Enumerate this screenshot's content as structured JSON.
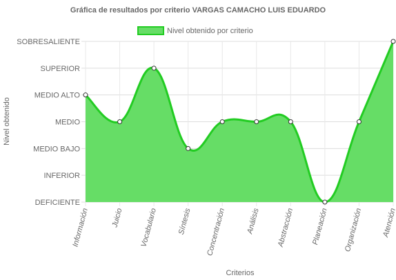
{
  "chart_data": {
    "type": "area",
    "title": "Gráfica de resultados por criterio VARGAS CAMACHO LUIS EDUARDO",
    "xlabel": "Criterios",
    "ylabel": "Nivel obtenido",
    "categories": [
      "Información",
      "Juicio",
      "Vocabulario",
      "Síntesis",
      "Concentración",
      "Análisis",
      "Abstracción",
      "Planeación",
      "Organización",
      "Atención"
    ],
    "y_levels": [
      "DEFICIENTE",
      "INFERIOR",
      "MEDIO BAJO",
      "MEDIO",
      "MEDIO ALTO",
      "SUPERIOR",
      "SOBRESALIENTE"
    ],
    "ylim": [
      0,
      6
    ],
    "series": [
      {
        "name": "Nivel obtenido por criterio",
        "values": [
          4,
          3,
          5,
          2,
          3,
          3,
          3,
          0,
          3,
          6
        ]
      }
    ],
    "legend": "top-center",
    "grid": true,
    "colors": {
      "fill": "#66dd66",
      "stroke": "#22cc22",
      "point_fill": "#ffffff",
      "point_stroke": "#333333"
    }
  }
}
